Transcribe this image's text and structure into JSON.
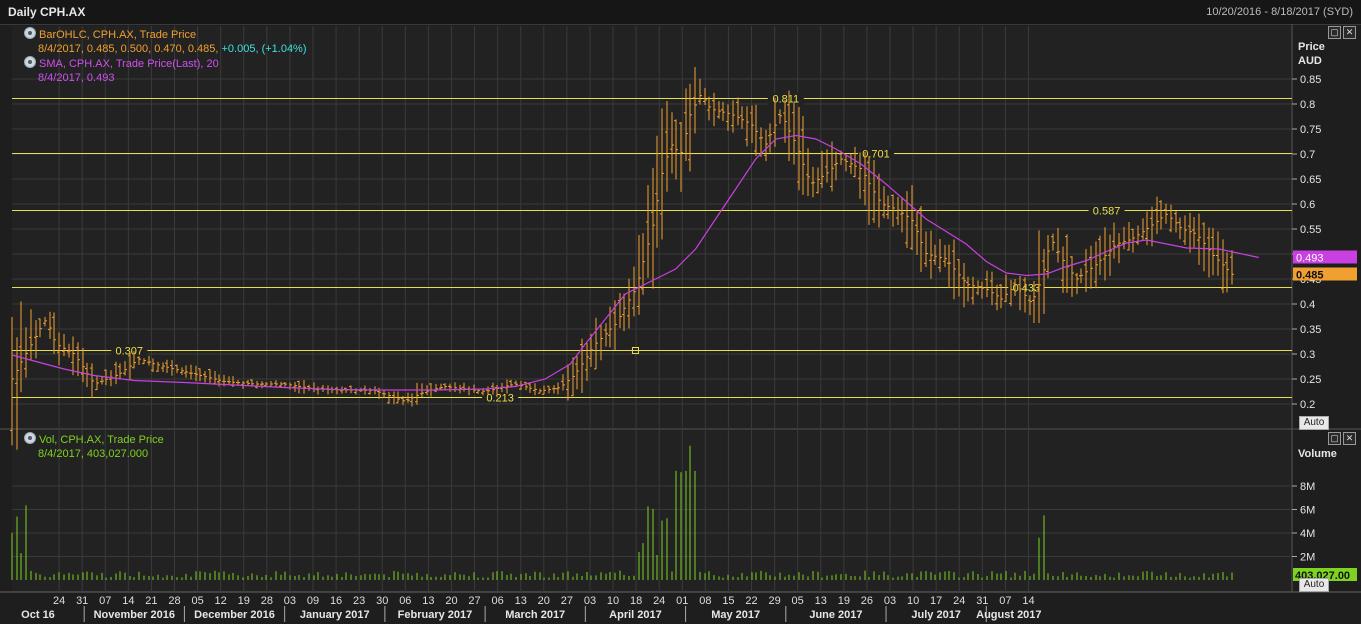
{
  "window": {
    "title": "Daily CPH.AX",
    "date_range": "10/20/2016 - 8/18/2017 (SYD)"
  },
  "legend": {
    "bar_name": "BarOHLC, CPH.AX, Trade Price",
    "bar_values": "8/4/2017, 0.485, 0.500, 0.470, 0.485,",
    "bar_change": "+0.005, (+1.04%)",
    "sma_name": "SMA, CPH.AX, Trade Price(Last),  20",
    "sma_values": "8/4/2017, 0.493",
    "vol_name": "Vol, CPH.AX, Trade Price",
    "vol_values": "8/4/2017, 403,027.000"
  },
  "axis": {
    "price_title": "Price",
    "price_unit": "AUD",
    "volume_title": "Volume",
    "auto_label": "Auto"
  },
  "colors": {
    "bars": "#f0a030",
    "sma": "#c840e0",
    "hlines": "#e8e04a",
    "volume": "#7ed321",
    "grid": "#3a3a3a"
  },
  "chart_data": [
    {
      "type": "line",
      "title": "Daily CPH.AX",
      "ylabel": "Price AUD",
      "ylim": [
        0.18,
        0.87
      ],
      "yticks": [
        0.2,
        0.25,
        0.3,
        0.35,
        0.4,
        0.45,
        0.5,
        0.55,
        0.6,
        0.65,
        0.7,
        0.75,
        0.8,
        0.85
      ],
      "grid": true,
      "x_tick_labels": [
        "24",
        "31",
        "07",
        "14",
        "21",
        "28",
        "05",
        "12",
        "19",
        "28",
        "03",
        "09",
        "16",
        "23",
        "30",
        "06",
        "13",
        "20",
        "27",
        "06",
        "13",
        "20",
        "27",
        "03",
        "10",
        "18",
        "24",
        "01",
        "08",
        "15",
        "22",
        "29",
        "05",
        "13",
        "19",
        "26",
        "03",
        "10",
        "17",
        "24",
        "31",
        "07",
        "14"
      ],
      "month_labels": [
        "Oct 16",
        "November 2016",
        "December 2016",
        "January 2017",
        "February 2017",
        "March 2017",
        "April 2017",
        "May 2017",
        "June 2017",
        "July 2017",
        "August 2017"
      ],
      "horizontal_levels": [
        0.811,
        0.701,
        0.587,
        0.433,
        0.307,
        0.213
      ],
      "horizontal_level_labels": [
        "0.811",
        "0.701",
        "0.587",
        "0.433",
        "0.307",
        "0.213"
      ],
      "last_price_label": "0.485",
      "last_sma_label": "0.493",
      "sma_points": [
        [
          0.28,
          0.298
        ],
        [
          0.5,
          0.286
        ],
        [
          0.8,
          0.27
        ],
        [
          1.1,
          0.257
        ],
        [
          1.5,
          0.247
        ],
        [
          2.0,
          0.243
        ],
        [
          2.5,
          0.238
        ],
        [
          3.0,
          0.233
        ],
        [
          3.5,
          0.229
        ],
        [
          4.0,
          0.228
        ],
        [
          4.5,
          0.228
        ],
        [
          5.0,
          0.23
        ],
        [
          5.3,
          0.235
        ],
        [
          5.6,
          0.25
        ],
        [
          5.85,
          0.28
        ],
        [
          6.0,
          0.32
        ],
        [
          6.2,
          0.37
        ],
        [
          6.4,
          0.42
        ],
        [
          6.6,
          0.44
        ],
        [
          6.9,
          0.47
        ],
        [
          7.1,
          0.51
        ],
        [
          7.3,
          0.57
        ],
        [
          7.5,
          0.63
        ],
        [
          7.7,
          0.69
        ],
        [
          7.9,
          0.73
        ],
        [
          8.1,
          0.737
        ],
        [
          8.3,
          0.73
        ],
        [
          8.5,
          0.71
        ],
        [
          8.75,
          0.68
        ],
        [
          9.0,
          0.64
        ],
        [
          9.2,
          0.605
        ],
        [
          9.4,
          0.57
        ],
        [
          9.6,
          0.545
        ],
        [
          9.8,
          0.52
        ],
        [
          10.0,
          0.485
        ],
        [
          10.2,
          0.462
        ],
        [
          10.4,
          0.457
        ],
        [
          10.6,
          0.46
        ],
        [
          10.8,
          0.475
        ],
        [
          11.0,
          0.487
        ],
        [
          11.2,
          0.505
        ],
        [
          11.4,
          0.522
        ],
        [
          11.6,
          0.528
        ],
        [
          11.8,
          0.52
        ],
        [
          12.0,
          0.512
        ],
        [
          12.2,
          0.51
        ],
        [
          12.45,
          0.493
        ]
      ],
      "bars": {
        "note": "daily OHLC estimated from image, x in months since 1 Oct 2016",
        "x": [
          0.73,
          0.76,
          0.79,
          0.82,
          0.85,
          0.88,
          0.91,
          0.94,
          0.97,
          1.0,
          1.03,
          1.06,
          1.09,
          1.12,
          1.15,
          1.18,
          1.21,
          1.24,
          1.27,
          1.3,
          1.33,
          1.36,
          1.39,
          1.42,
          1.45,
          1.48,
          1.51,
          1.54,
          1.57,
          1.6,
          1.63,
          1.66,
          1.69,
          1.72,
          1.75,
          1.78,
          1.81,
          1.84,
          1.87,
          1.9,
          1.93,
          1.96,
          1.99,
          2.02,
          2.05,
          2.08,
          2.11,
          2.14,
          2.17,
          2.2,
          2.23,
          2.26,
          2.29,
          2.32,
          2.35,
          2.38,
          2.41,
          2.44,
          2.47,
          2.5,
          2.53,
          2.56,
          2.59,
          2.62,
          2.65,
          2.68,
          2.71,
          2.74,
          2.77,
          2.8,
          2.83,
          2.86,
          2.89,
          2.92,
          2.95,
          2.98,
          3.01,
          3.04,
          3.07,
          3.1,
          3.13,
          3.16,
          3.19,
          3.22,
          3.25,
          3.28,
          3.31,
          3.34,
          3.37,
          3.4,
          3.43,
          3.46,
          3.49,
          3.52,
          3.55,
          3.58,
          3.61,
          3.64,
          3.67,
          3.7,
          3.73,
          3.76,
          3.79,
          3.82,
          3.85,
          3.88,
          3.91,
          3.94,
          3.97,
          4.0,
          4.03,
          4.06,
          4.09,
          4.12,
          4.15,
          4.18,
          4.21,
          4.24,
          4.27,
          4.3,
          4.33,
          4.36,
          4.39,
          4.42,
          4.45,
          4.48,
          4.51,
          4.54,
          4.57,
          4.6,
          4.63,
          4.66,
          4.69,
          4.72,
          4.75,
          4.78,
          4.81,
          4.84,
          4.87,
          4.9,
          4.93,
          4.96,
          4.99,
          5.02,
          5.05,
          5.08,
          5.11,
          5.14,
          5.17,
          5.2,
          5.23,
          5.26,
          5.29,
          5.32,
          5.35,
          5.38,
          5.41,
          5.44,
          5.47,
          5.5,
          5.53,
          5.56,
          5.59,
          5.62,
          5.65,
          5.68,
          5.71,
          5.74,
          5.77,
          5.8,
          5.83,
          5.86,
          5.89,
          5.92,
          5.95,
          5.98,
          6.01,
          6.04,
          6.07,
          6.1,
          6.13,
          6.16,
          6.19,
          6.22,
          6.25,
          6.28,
          6.31,
          6.34,
          6.37,
          6.4,
          6.43,
          6.46,
          6.49,
          6.52,
          6.55,
          6.58,
          6.61,
          6.64,
          6.67,
          6.7,
          6.73,
          6.76,
          6.79,
          6.82,
          6.85,
          6.88,
          6.91,
          6.94,
          6.97,
          7.0,
          7.03,
          7.06,
          7.09,
          7.12,
          7.15,
          7.18,
          7.21,
          7.24,
          7.27,
          7.3,
          7.33,
          7.36,
          7.39,
          7.42,
          7.45,
          7.48,
          7.51,
          7.54,
          7.57,
          7.6,
          7.63,
          7.66,
          7.69,
          7.72,
          7.75,
          7.78,
          7.81,
          7.84,
          7.87,
          7.9,
          7.93,
          7.96,
          7.99,
          8.02,
          8.05,
          8.08,
          8.11,
          8.14,
          8.17,
          8.2,
          8.23,
          8.26,
          8.29,
          8.32,
          8.35,
          8.38,
          8.41,
          8.44,
          8.47,
          8.5,
          8.53,
          8.56,
          8.59,
          8.62,
          8.65,
          8.68,
          8.71,
          8.74,
          8.77,
          8.8,
          8.83,
          8.86,
          8.89,
          8.92,
          8.95,
          8.98,
          9.01,
          9.04,
          9.07,
          9.1,
          9.13,
          9.16,
          9.19,
          9.22,
          9.25,
          9.28,
          9.31,
          9.34,
          9.37,
          9.4,
          9.43,
          9.46,
          9.49,
          9.52,
          9.55,
          9.58,
          9.61,
          9.64,
          9.67,
          9.7,
          9.73,
          9.76,
          9.79,
          9.82,
          9.85,
          9.88,
          9.91,
          9.94,
          9.97,
          10.0,
          10.03,
          10.06,
          10.09,
          10.12,
          10.15,
          10.18,
          10.21,
          10.24,
          10.27,
          10.3,
          10.33,
          10.36,
          10.39,
          10.42,
          10.45,
          10.48,
          10.51,
          10.54,
          10.57,
          10.6,
          10.63,
          10.66,
          10.69,
          10.72,
          10.75,
          10.78,
          10.81,
          10.84,
          10.87,
          10.9,
          10.93,
          10.96,
          10.99,
          11.02,
          11.05,
          11.08,
          11.11,
          11.14,
          11.17,
          11.2,
          11.23,
          11.26,
          11.29,
          11.32,
          11.35,
          11.38,
          11.41,
          11.44,
          11.47,
          11.5,
          11.53,
          11.56,
          11.59,
          11.62,
          11.65,
          11.68,
          11.71,
          11.74,
          11.77,
          11.8,
          11.83,
          11.86,
          11.89,
          11.92,
          11.95,
          11.98,
          12.01,
          12.04,
          12.07,
          12.1,
          12.13,
          12.16,
          12.19,
          12.22,
          12.25,
          12.28,
          12.31,
          12.34,
          12.37,
          12.4,
          12.43,
          12.46
        ]
      }
    },
    {
      "type": "bar",
      "title": "",
      "ylabel": "Volume",
      "ylim": [
        0,
        12000000
      ],
      "yticks": [
        2000000,
        4000000,
        6000000,
        8000000
      ],
      "ytick_labels": [
        "2M",
        "4M",
        "6M",
        "8M"
      ],
      "last_volume_label": "403,027.00"
    }
  ]
}
